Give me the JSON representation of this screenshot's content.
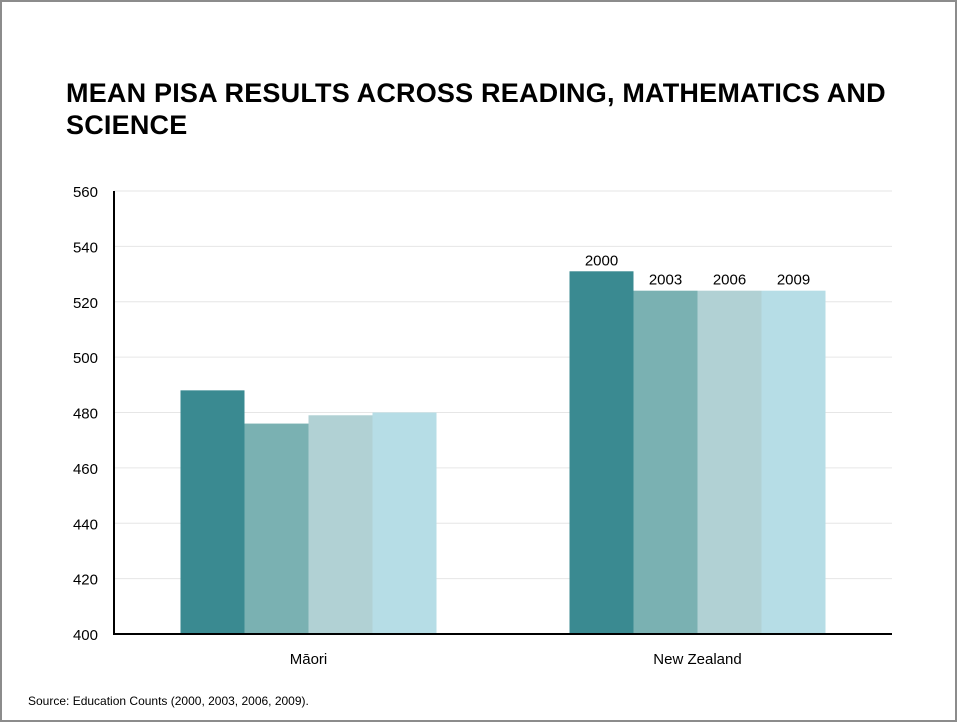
{
  "title": "MEAN PISA RESULTS ACROSS READING, MATHEMATICS AND SCIENCE",
  "source": "Source: Education Counts (2000, 2003, 2006, 2009).",
  "chart_data": {
    "type": "bar",
    "title": "MEAN PISA RESULTS ACROSS READING, MATHEMATICS AND SCIENCE",
    "categories": [
      "Māori",
      "New Zealand"
    ],
    "series": [
      {
        "name": "2000",
        "values": [
          488,
          531
        ],
        "color": "#3a8a91"
      },
      {
        "name": "2003",
        "values": [
          476,
          524
        ],
        "color": "#7ab1b2"
      },
      {
        "name": "2006",
        "values": [
          479,
          524
        ],
        "color": "#b1d1d4"
      },
      {
        "name": "2009",
        "values": [
          480,
          524
        ],
        "color": "#b6dde6"
      }
    ],
    "data_labels_category": "New Zealand",
    "ylim": [
      400,
      560
    ],
    "yticks": [
      400,
      420,
      440,
      460,
      480,
      500,
      520,
      540,
      560
    ],
    "xlabel": "",
    "ylabel": "",
    "grid": true
  }
}
